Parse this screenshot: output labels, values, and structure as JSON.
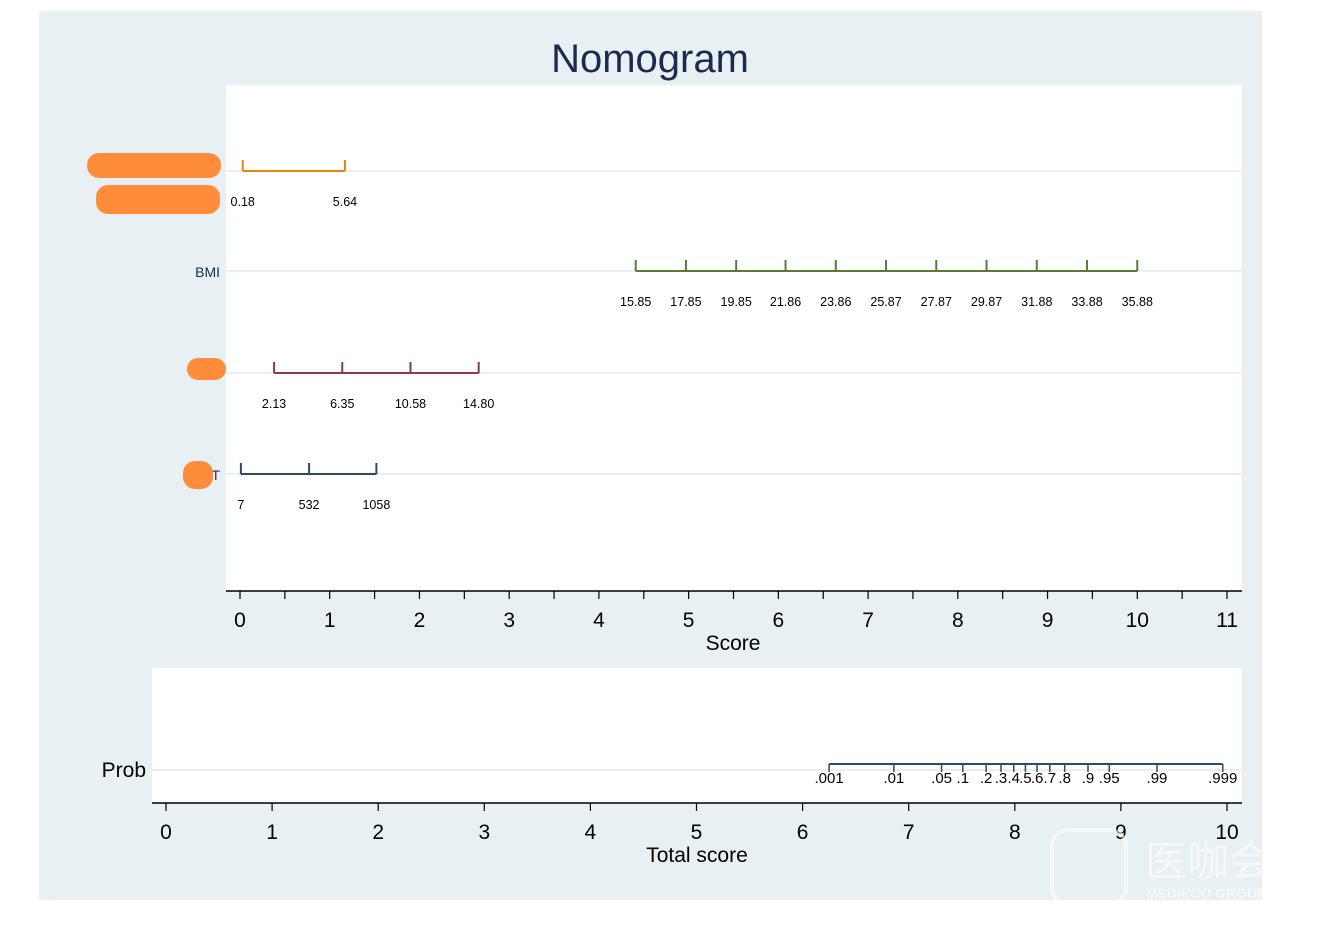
{
  "chart_data": {
    "type": "nomogram",
    "title": "Nomogram",
    "score_axis": {
      "label": "Score",
      "range": [
        0,
        11
      ],
      "ticks": [
        0,
        1,
        2,
        3,
        4,
        5,
        6,
        7,
        8,
        9,
        10,
        11
      ],
      "minor_step": 0.5
    },
    "variables": [
      {
        "name": "",
        "color": "#e8860c",
        "ticks": [
          {
            "label": "0.18",
            "score": 0.03
          },
          {
            "label": "5.64",
            "score": 1.17
          }
        ]
      },
      {
        "name": "BMI",
        "color": "#5a7a3a",
        "ticks": [
          {
            "label": "15.85",
            "score": 4.41
          },
          {
            "label": "17.85",
            "score": 4.97
          },
          {
            "label": "19.85",
            "score": 5.53
          },
          {
            "label": "21.86",
            "score": 6.08
          },
          {
            "label": "23.86",
            "score": 6.64
          },
          {
            "label": "25.87",
            "score": 7.2
          },
          {
            "label": "27.87",
            "score": 7.76
          },
          {
            "label": "29.87",
            "score": 8.32
          },
          {
            "label": "31.88",
            "score": 8.88
          },
          {
            "label": "33.88",
            "score": 9.44
          },
          {
            "label": "35.88",
            "score": 10.0
          }
        ]
      },
      {
        "name": "",
        "color": "#8b3a46",
        "ticks": [
          {
            "label": "2.13",
            "score": 0.38
          },
          {
            "label": "6.35",
            "score": 1.14
          },
          {
            "label": "10.58",
            "score": 1.9
          },
          {
            "label": "14.80",
            "score": 2.66
          }
        ]
      },
      {
        "name": "T",
        "color": "#2c4a6e",
        "ticks": [
          {
            "label": "7",
            "score": 0.01
          },
          {
            "label": "532",
            "score": 0.77
          },
          {
            "label": "1058",
            "score": 1.52
          }
        ]
      }
    ],
    "total_axis": {
      "label": "Total score",
      "range": [
        0,
        10
      ],
      "ticks": [
        0,
        1,
        2,
        3,
        4,
        5,
        6,
        7,
        8,
        9,
        10
      ]
    },
    "prob": {
      "name": "Prob",
      "color": "#2c4a6e",
      "ticks": [
        {
          "label": ".001",
          "score": 6.25
        },
        {
          "label": ".01",
          "score": 6.86
        },
        {
          "label": ".05",
          "score": 7.31
        },
        {
          "label": ".1",
          "score": 7.51
        },
        {
          "label": ".2",
          "score": 7.73
        },
        {
          "label": ".3",
          "score": 7.87
        },
        {
          "label": ".4",
          "score": 7.99
        },
        {
          "label": ".5",
          "score": 8.1
        },
        {
          "label": ".6",
          "score": 8.21
        },
        {
          "label": ".7",
          "score": 8.33
        },
        {
          "label": ".8",
          "score": 8.47
        },
        {
          "label": ".9",
          "score": 8.69
        },
        {
          "label": ".95",
          "score": 8.89
        },
        {
          "label": ".99",
          "score": 9.34
        },
        {
          "label": ".999",
          "score": 9.96
        }
      ]
    }
  },
  "watermark": {
    "cn": "医咖会",
    "en": "MEDIECO GROUP"
  }
}
